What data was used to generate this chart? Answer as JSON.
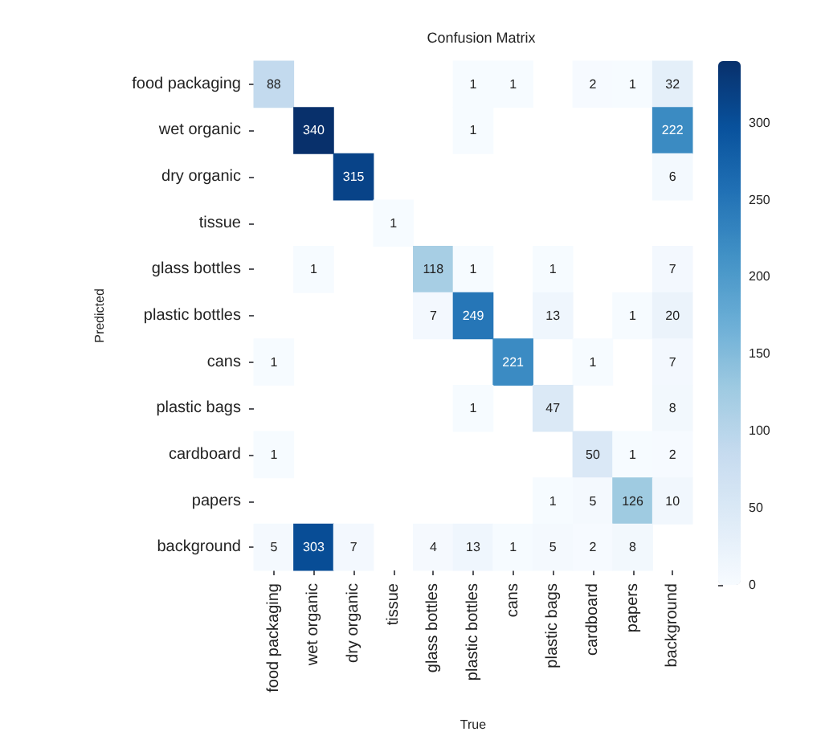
{
  "chart_data": {
    "type": "heatmap",
    "title": "Confusion Matrix",
    "xlabel": "True",
    "ylabel": "Predicted",
    "categories": [
      "food packaging",
      "wet organic",
      "dry organic",
      "tissue",
      "glass bottles",
      "plastic bottles",
      "cans",
      "plastic bags",
      "cardboard",
      "papers",
      "background"
    ],
    "y_categories": [
      "food packaging",
      "wet organic",
      "dry organic",
      "tissue",
      "glass bottles",
      "plastic bottles",
      "cans",
      "plastic bags",
      "cardboard",
      "papers",
      "background"
    ],
    "cells": [
      [
        88,
        null,
        null,
        null,
        null,
        1,
        1,
        null,
        2,
        1,
        32
      ],
      [
        null,
        340,
        null,
        null,
        null,
        1,
        null,
        null,
        null,
        null,
        222
      ],
      [
        null,
        null,
        315,
        null,
        null,
        null,
        null,
        null,
        null,
        null,
        6
      ],
      [
        null,
        null,
        null,
        1,
        null,
        null,
        null,
        null,
        null,
        null,
        null
      ],
      [
        null,
        1,
        null,
        null,
        118,
        1,
        null,
        1,
        null,
        null,
        7
      ],
      [
        null,
        null,
        null,
        null,
        7,
        249,
        null,
        13,
        null,
        1,
        20
      ],
      [
        1,
        null,
        null,
        null,
        null,
        null,
        221,
        null,
        1,
        null,
        7
      ],
      [
        null,
        null,
        null,
        null,
        null,
        1,
        null,
        47,
        null,
        null,
        8
      ],
      [
        1,
        null,
        null,
        null,
        null,
        null,
        null,
        null,
        50,
        1,
        2
      ],
      [
        null,
        null,
        null,
        null,
        null,
        null,
        null,
        1,
        5,
        126,
        10
      ],
      [
        5,
        303,
        7,
        null,
        4,
        13,
        1,
        5,
        2,
        8,
        null
      ]
    ],
    "clim": [
      0,
      340
    ],
    "cticks": [
      0,
      50,
      100,
      150,
      200,
      250,
      300
    ],
    "data_labels": true
  }
}
